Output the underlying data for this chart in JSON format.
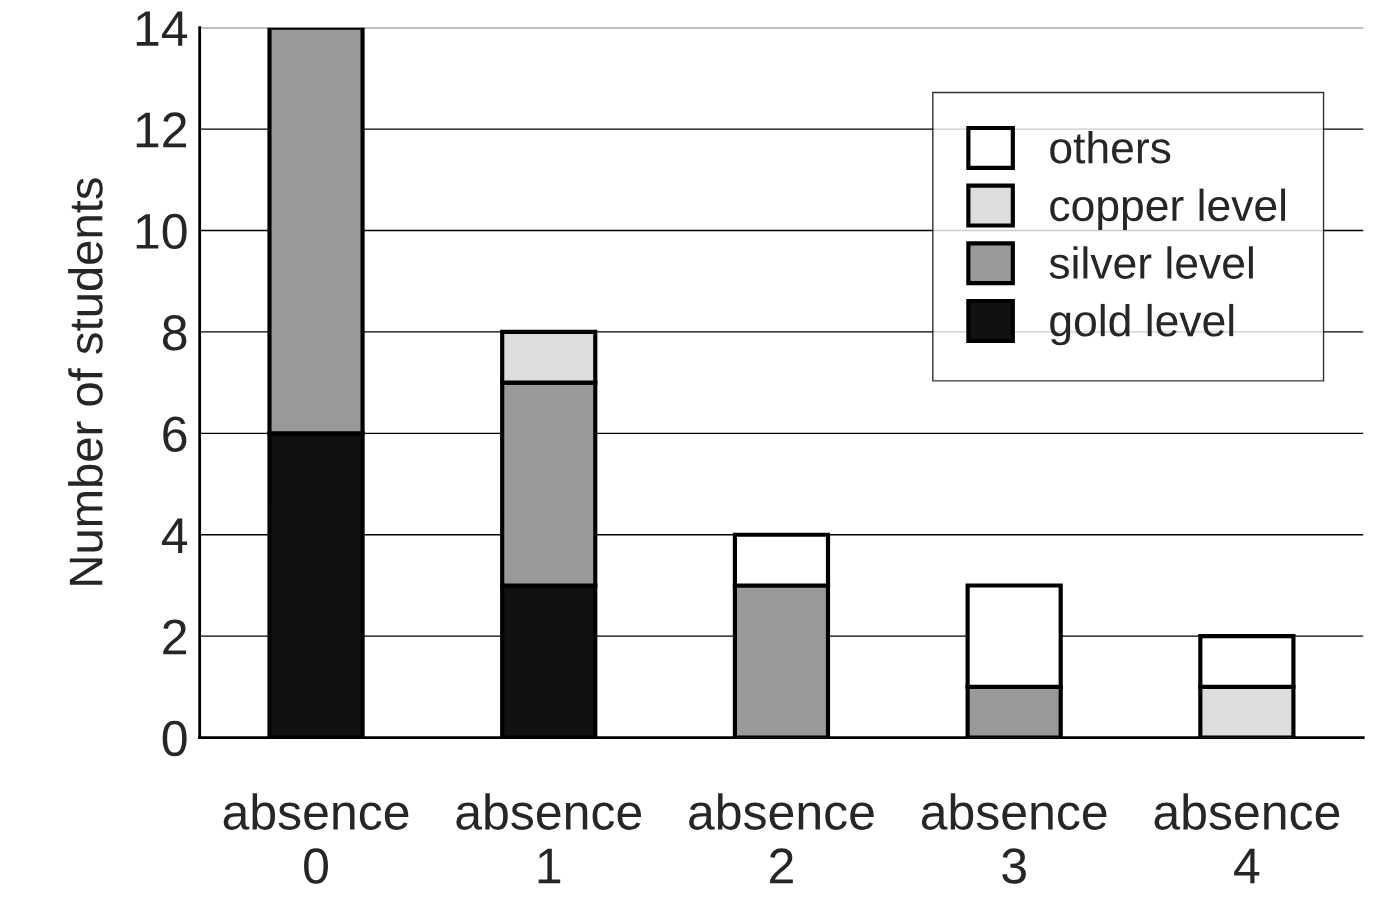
{
  "chart_data": {
    "type": "bar",
    "stacked": true,
    "ylabel": "Number of students",
    "categories": [
      "absence\n0",
      "absence\n1",
      "absence\n2",
      "absence\n3",
      "absence\n4"
    ],
    "series": [
      {
        "name": "gold level",
        "color": "#111111",
        "values": [
          6,
          3,
          null,
          null,
          null
        ]
      },
      {
        "name": "silver level",
        "color": "#999999",
        "values": [
          8,
          4,
          3,
          1,
          null
        ]
      },
      {
        "name": "copper level",
        "color": "#dddddd",
        "values": [
          null,
          1,
          null,
          null,
          1
        ]
      },
      {
        "name": "others",
        "color": "#ffffff",
        "values": [
          null,
          null,
          1,
          2,
          1
        ]
      }
    ],
    "ylim": [
      0,
      14
    ],
    "yticks": [
      0,
      2,
      4,
      6,
      8,
      10,
      12,
      14
    ],
    "grid": "y",
    "legend": "top right"
  }
}
